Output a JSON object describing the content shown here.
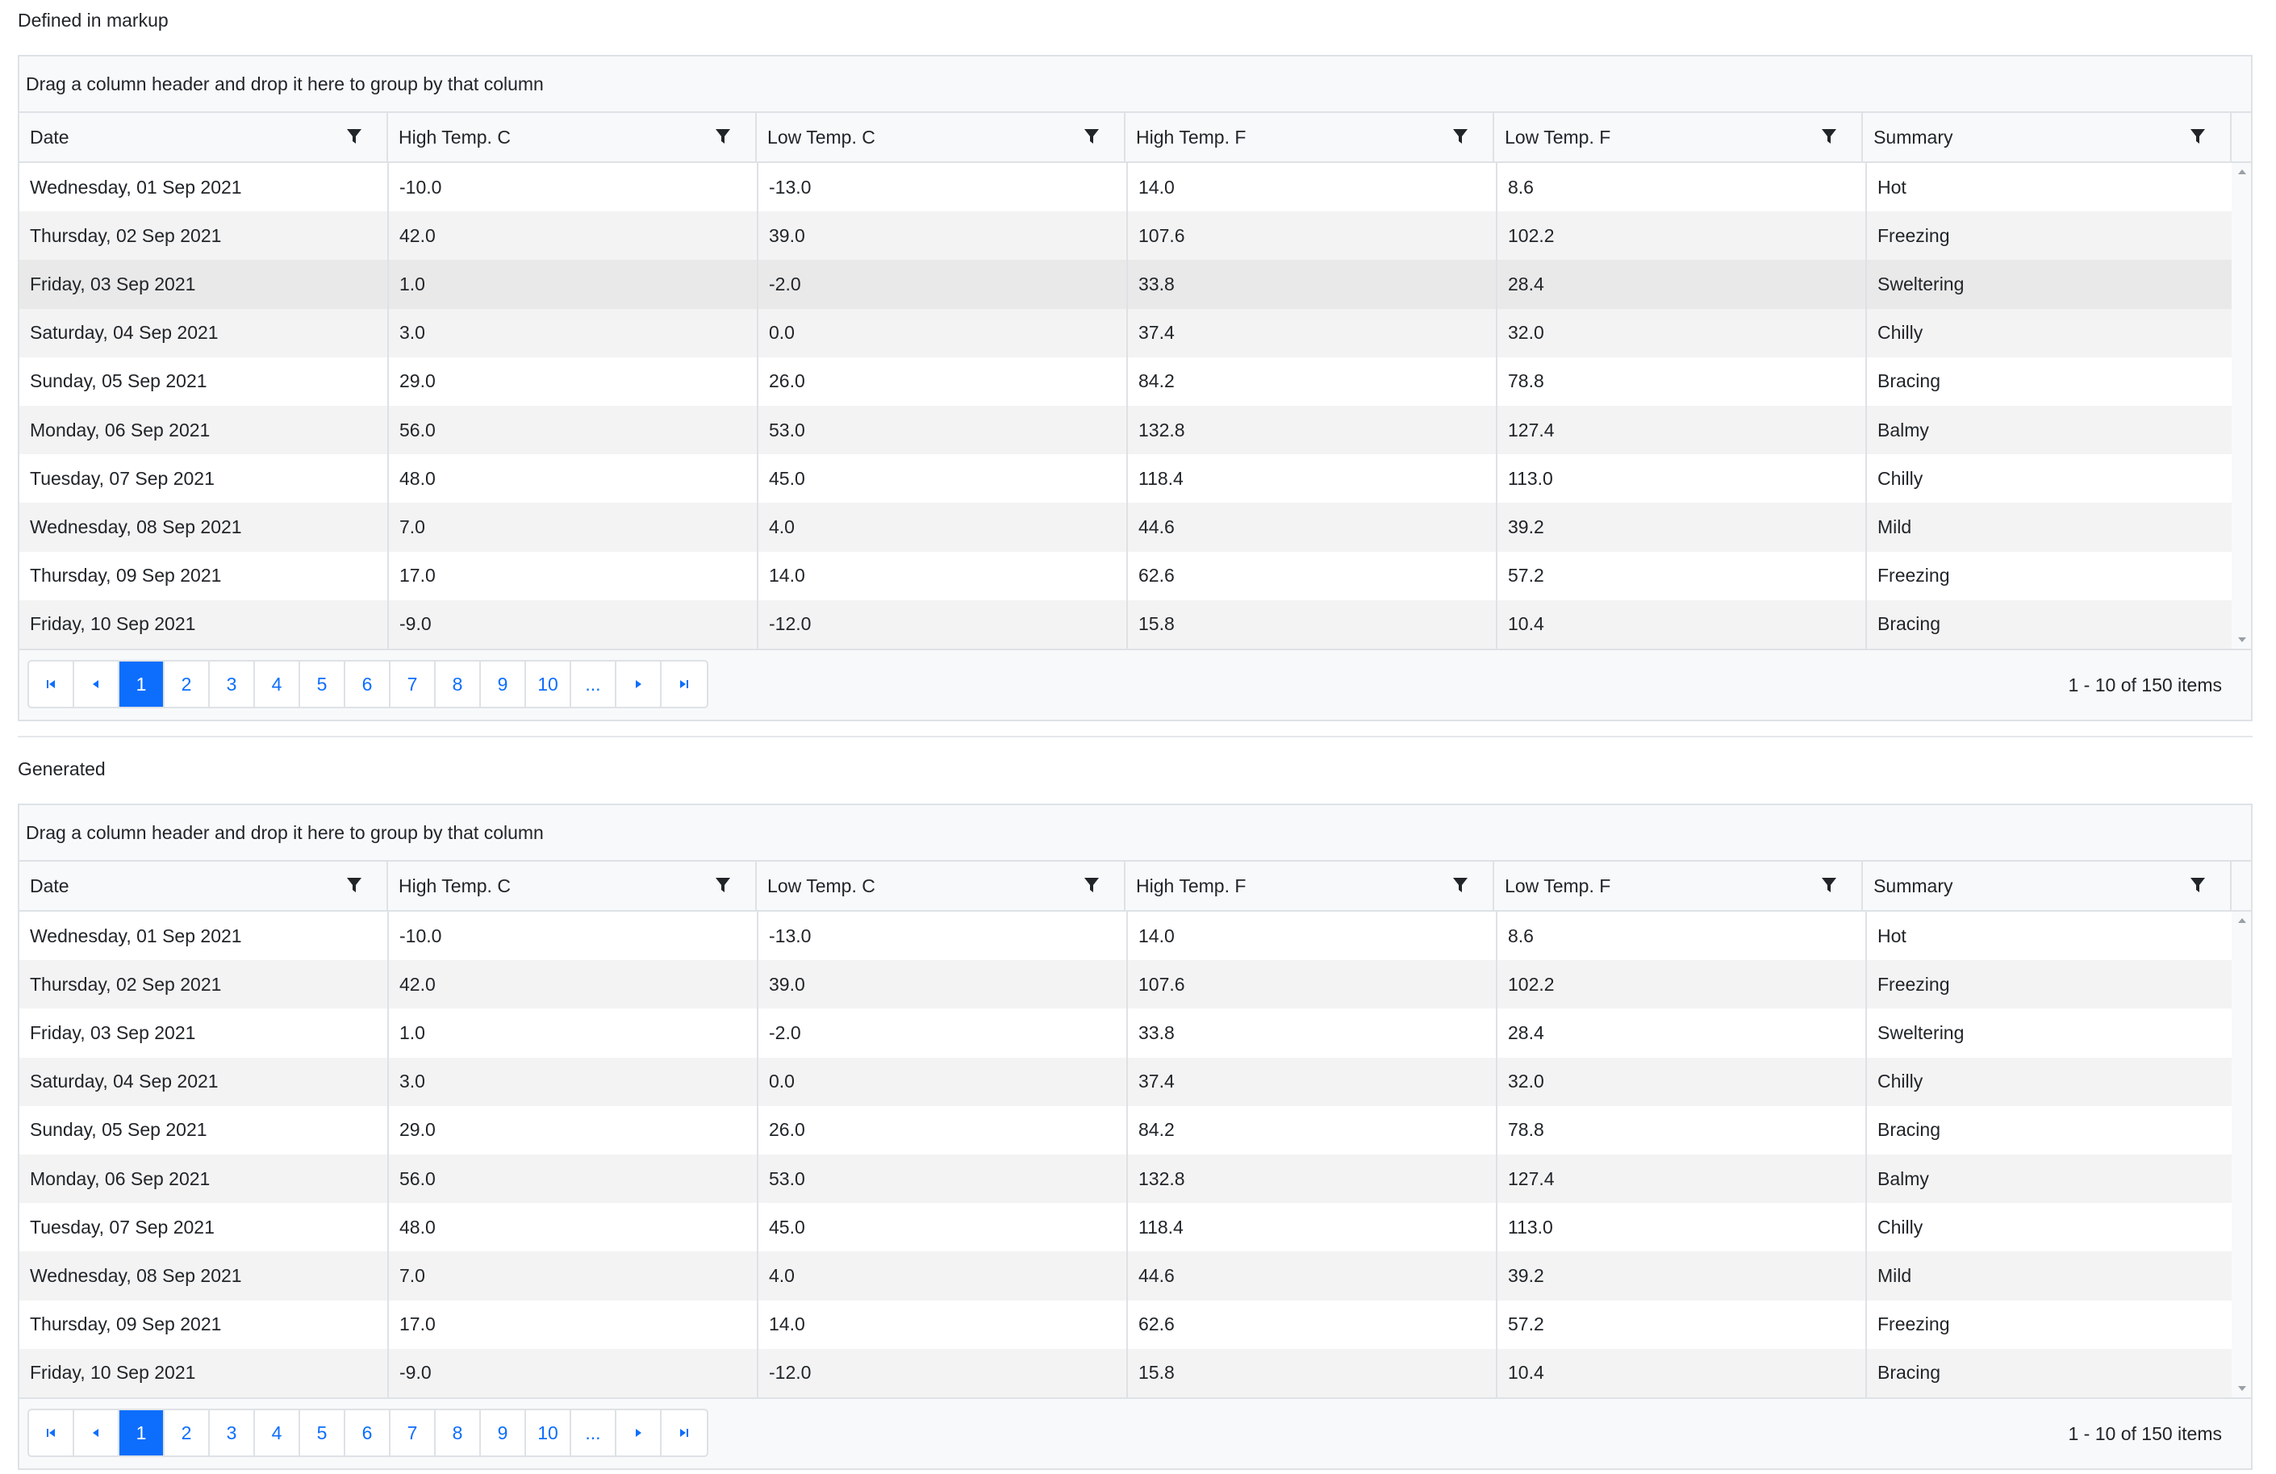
{
  "sections": [
    {
      "title": "Defined in markup"
    },
    {
      "title": "Generated"
    }
  ],
  "grid": {
    "group_panel_text": "Drag a column header and drop it here to group by that column",
    "columns": [
      "Date",
      "High Temp. C",
      "Low Temp. C",
      "High Temp. F",
      "Low Temp. F",
      "Summary"
    ],
    "rows": [
      [
        "Wednesday, 01 Sep 2021",
        "-10.0",
        "-13.0",
        "14.0",
        "8.6",
        "Hot"
      ],
      [
        "Thursday, 02 Sep 2021",
        "42.0",
        "39.0",
        "107.6",
        "102.2",
        "Freezing"
      ],
      [
        "Friday, 03 Sep 2021",
        "1.0",
        "-2.0",
        "33.8",
        "28.4",
        "Sweltering"
      ],
      [
        "Saturday, 04 Sep 2021",
        "3.0",
        "0.0",
        "37.4",
        "32.0",
        "Chilly"
      ],
      [
        "Sunday, 05 Sep 2021",
        "29.0",
        "26.0",
        "84.2",
        "78.8",
        "Bracing"
      ],
      [
        "Monday, 06 Sep 2021",
        "56.0",
        "53.0",
        "132.8",
        "127.4",
        "Balmy"
      ],
      [
        "Tuesday, 07 Sep 2021",
        "48.0",
        "45.0",
        "118.4",
        "113.0",
        "Chilly"
      ],
      [
        "Wednesday, 08 Sep 2021",
        "7.0",
        "4.0",
        "44.6",
        "39.2",
        "Mild"
      ],
      [
        "Thursday, 09 Sep 2021",
        "17.0",
        "14.0",
        "62.6",
        "57.2",
        "Freezing"
      ],
      [
        "Friday, 10 Sep 2021",
        "-9.0",
        "-12.0",
        "15.8",
        "10.4",
        "Bracing"
      ]
    ],
    "pager": {
      "pages": [
        "1",
        "2",
        "3",
        "4",
        "5",
        "6",
        "7",
        "8",
        "9",
        "10",
        "..."
      ],
      "current_page": "1",
      "info": "1 - 10 of 150 items"
    }
  },
  "colors": {
    "accent": "#0d6efd",
    "header_bg": "#f8f9fa",
    "alt_row_bg": "#f3f3f3",
    "hover_row_bg": "#e9e9e9",
    "border": "#dee2e6"
  },
  "icons": {
    "filter": "filter-icon",
    "first_page": "first-page-icon",
    "previous_page": "previous-page-icon",
    "next_page": "next-page-icon",
    "last_page": "last-page-icon"
  }
}
